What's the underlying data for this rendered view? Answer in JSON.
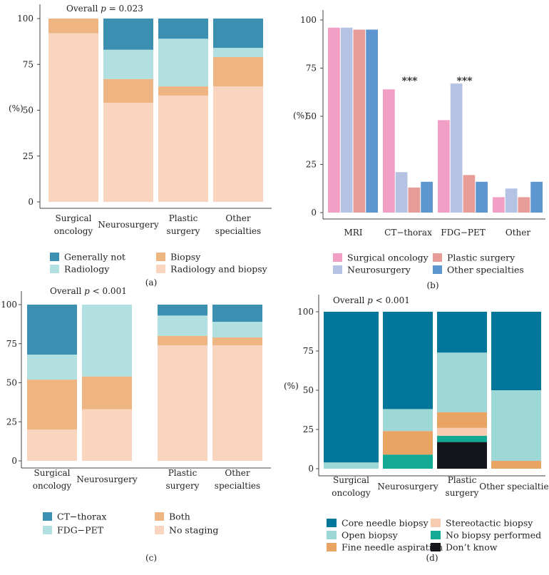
{
  "chart_data": [
    {
      "type": "bar",
      "stacked": true,
      "panel_label": "(a)",
      "annotation": {
        "prefix": "Overall ",
        "var": "p",
        "suffix": " = 0.023"
      },
      "ylabel": "(%)",
      "ylim": [
        0,
        100
      ],
      "yticks": [
        0,
        25,
        50,
        75,
        100
      ],
      "categories": [
        [
          "Surgical",
          "oncology"
        ],
        [
          "Neurosurgery"
        ],
        [
          "Plastic",
          "surgery"
        ],
        [
          "Other",
          "specialties"
        ]
      ],
      "series": [
        {
          "name": "Radiology and biopsy",
          "color": "#f9d5bf",
          "values": [
            92,
            54,
            58,
            63
          ]
        },
        {
          "name": "Biopsy",
          "color": "#eeb582",
          "values": [
            8,
            13,
            5,
            16
          ]
        },
        {
          "name": "Radiology",
          "color": "#b2e0e0",
          "values": [
            0,
            16,
            26,
            5
          ]
        },
        {
          "name": "Generally not",
          "color": "#3b90b2",
          "values": [
            0,
            17,
            11,
            16
          ]
        }
      ],
      "legend": [
        {
          "label": "Generally not",
          "color": "#3b90b2"
        },
        {
          "label": "Biopsy",
          "color": "#eeb582"
        },
        {
          "label": "Radiology",
          "color": "#b2e0e0"
        },
        {
          "label": "Radiology and biopsy",
          "color": "#f9d5bf"
        }
      ]
    },
    {
      "type": "bar",
      "grouped": true,
      "panel_label": "(b)",
      "ylabel": "(%)",
      "ylim": [
        0,
        100
      ],
      "yticks": [
        0,
        25,
        50,
        75,
        100
      ],
      "categories": [
        [
          "MRI"
        ],
        [
          "CT−thorax"
        ],
        [
          "FDG−PET"
        ],
        [
          "Other"
        ]
      ],
      "series": [
        {
          "name": "Surgical oncology",
          "color": "#f29fc5",
          "values": [
            96,
            64,
            48,
            8
          ]
        },
        {
          "name": "Neurosurgery",
          "color": "#b4c3e3",
          "values": [
            96,
            21,
            67,
            12.5
          ]
        },
        {
          "name": "Plastic surgery",
          "color": "#e89c98",
          "values": [
            95,
            13,
            19.5,
            8
          ]
        },
        {
          "name": "Other specialties",
          "color": "#5e96d0",
          "values": [
            95,
            16,
            16,
            16
          ]
        }
      ],
      "significance": [
        {
          "category": 1,
          "label": "***"
        },
        {
          "category": 2,
          "label": "***"
        }
      ],
      "legend": [
        {
          "label": "Surgical oncology",
          "color": "#f29fc5"
        },
        {
          "label": "Plastic surgery",
          "color": "#e89c98"
        },
        {
          "label": "Neurosurgery",
          "color": "#b4c3e3"
        },
        {
          "label": "Other specialties",
          "color": "#5e96d0"
        }
      ]
    },
    {
      "type": "bar",
      "stacked": true,
      "panel_label": "(c)",
      "annotation": {
        "prefix": "Overall ",
        "var": "p",
        "suffix": " < 0.001"
      },
      "ylabel": "",
      "ylim": [
        0,
        100
      ],
      "yticks": [
        0,
        25,
        50,
        75,
        100
      ],
      "categories": [
        [
          "Surgical",
          "oncology"
        ],
        [
          "Neurosurgery"
        ],
        [
          "Plastic",
          "surgery"
        ],
        [
          "Other",
          "specialties"
        ]
      ],
      "series": [
        {
          "name": "No staging",
          "color": "#f9d5bf",
          "values": [
            20,
            33,
            74,
            74
          ]
        },
        {
          "name": "Both",
          "color": "#eeb582",
          "values": [
            32,
            21,
            6,
            5
          ]
        },
        {
          "name": "FDG−PET",
          "color": "#b2e0e0",
          "values": [
            16,
            46,
            13,
            10
          ]
        },
        {
          "name": "CT−thorax",
          "color": "#3b90b2",
          "values": [
            32,
            0,
            7,
            11
          ]
        }
      ],
      "legend": [
        {
          "label": "CT−thorax",
          "color": "#3b90b2"
        },
        {
          "label": "Both",
          "color": "#eeb582"
        },
        {
          "label": "FDG−PET",
          "color": "#b2e0e0"
        },
        {
          "label": "No staging",
          "color": "#f9d5bf"
        }
      ]
    },
    {
      "type": "bar",
      "stacked": true,
      "panel_label": "(d)",
      "annotation": {
        "prefix": "Overall ",
        "var": "p",
        "suffix": " < 0.001"
      },
      "ylabel": "(%)",
      "ylim": [
        0,
        100
      ],
      "yticks": [
        0,
        25,
        50,
        75,
        100
      ],
      "categories": [
        [
          "Surgical",
          "oncology"
        ],
        [
          "Neurosurgery"
        ],
        [
          "Plastic",
          "surgery"
        ],
        [
          "Other specialties"
        ]
      ],
      "series": [
        {
          "name": "Don't know",
          "color": "#14161c",
          "values": [
            0,
            0,
            17,
            0
          ]
        },
        {
          "name": "No biopsy performed",
          "color": "#14a994",
          "values": [
            0,
            9,
            4,
            0
          ]
        },
        {
          "name": "Stereotactic biopsy",
          "color": "#f7cbb0",
          "values": [
            0,
            0,
            5,
            0
          ]
        },
        {
          "name": "Fine needle aspiration",
          "color": "#e9a363",
          "values": [
            0,
            15,
            10,
            5
          ]
        },
        {
          "name": "Open biopsy",
          "color": "#9ed8d6",
          "values": [
            4,
            14,
            38,
            45
          ]
        },
        {
          "name": "Core needle biopsy",
          "color": "#00769a",
          "values": [
            96,
            62,
            26,
            50
          ]
        }
      ],
      "legend": [
        {
          "label": "Core needle biopsy",
          "color": "#00769a"
        },
        {
          "label": "Stereotactic biopsy",
          "color": "#f7cbb0"
        },
        {
          "label": "Open biopsy",
          "color": "#9ed8d6"
        },
        {
          "label": "No biopsy performed",
          "color": "#14a994"
        },
        {
          "label": "Fine needle aspiration",
          "color": "#e9a363"
        },
        {
          "label": "Don’t know",
          "color": "#14161c"
        }
      ]
    }
  ]
}
